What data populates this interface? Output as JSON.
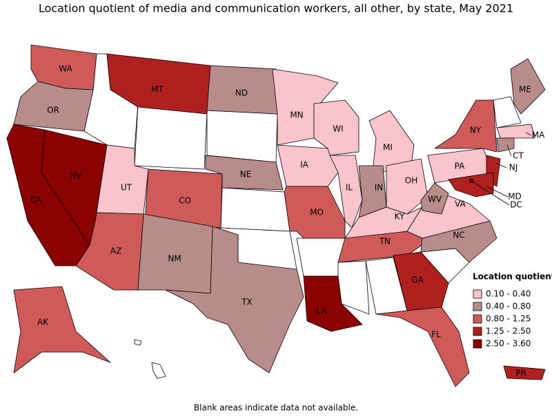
{
  "title": "Location quotient of media and communication workers, all other, by state, May 2021",
  "legend": {
    "title": "Location quotient",
    "items": [
      {
        "label": "0.10 - 0.40",
        "color": "#f9c4cc"
      },
      {
        "label": "0.40 - 0.80",
        "color": "#b98c8c"
      },
      {
        "label": "0.80 - 1.25",
        "color": "#d05a5a"
      },
      {
        "label": "1.25 - 2.50",
        "color": "#b0201f"
      },
      {
        "label": "2.50 - 3.60",
        "color": "#8b0000"
      }
    ]
  },
  "states": [
    {
      "label": "WA",
      "color": "#d05a5a"
    },
    {
      "label": "OR",
      "color": "#b98c8c"
    },
    {
      "label": "CA",
      "color": "#8b0000"
    },
    {
      "label": "NV",
      "color": "#8b0000"
    },
    {
      "label": "MT",
      "color": "#b0201f"
    },
    {
      "label": "UT",
      "color": "#f9c4cc"
    },
    {
      "label": "CO",
      "color": "#d05a5a"
    },
    {
      "label": "AZ",
      "color": "#d05a5a"
    },
    {
      "label": "NM",
      "color": "#b98c8c"
    },
    {
      "label": "ND",
      "color": "#b98c8c"
    },
    {
      "label": "NE",
      "color": "#b98c8c"
    },
    {
      "label": "TX",
      "color": "#b98c8c"
    },
    {
      "label": "MN",
      "color": "#f9c4cc"
    },
    {
      "label": "IA",
      "color": "#f9c4cc"
    },
    {
      "label": "MO",
      "color": "#d05a5a"
    },
    {
      "label": "LA",
      "color": "#8b0000"
    },
    {
      "label": "WI",
      "color": "#f9c4cc"
    },
    {
      "label": "IL",
      "color": "#f9c4cc"
    },
    {
      "label": "MI",
      "color": "#f9c4cc"
    },
    {
      "label": "IN",
      "color": "#b98c8c"
    },
    {
      "label": "OH",
      "color": "#f9c4cc"
    },
    {
      "label": "KY",
      "color": "#f9c4cc"
    },
    {
      "label": "TN",
      "color": "#d05a5a"
    },
    {
      "label": "GA",
      "color": "#b0201f"
    },
    {
      "label": "FL",
      "color": "#d05a5a"
    },
    {
      "label": "NC",
      "color": "#b98c8c"
    },
    {
      "label": "VA",
      "color": "#f9c4cc"
    },
    {
      "label": "WV",
      "color": "#b98c8c"
    },
    {
      "label": "PA",
      "color": "#f9c4cc"
    },
    {
      "label": "NY",
      "color": "#d05a5a"
    },
    {
      "label": "NJ",
      "color": "#b0201f"
    },
    {
      "label": "MD",
      "color": "#b0201f"
    },
    {
      "label": "DC",
      "color": "#8b0000"
    },
    {
      "label": "ME",
      "color": "#b98c8c"
    },
    {
      "label": "MA",
      "color": "#f9c4cc"
    },
    {
      "label": "CT",
      "color": "#b98c8c"
    },
    {
      "label": "AK",
      "color": "#d05a5a"
    },
    {
      "label": "PR",
      "color": "#b0201f"
    }
  ],
  "note": "Blank areas indicate data not available."
}
